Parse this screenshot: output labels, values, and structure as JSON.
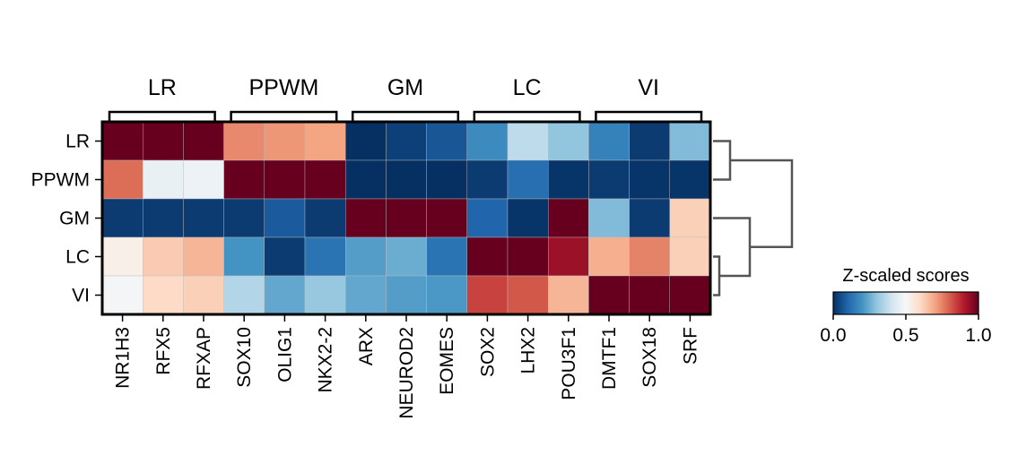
{
  "chart_data": {
    "type": "heatmap",
    "rows": [
      "LR",
      "PPWM",
      "GM",
      "LC",
      "VI"
    ],
    "columns": [
      "NR1H3",
      "RFX5",
      "RFXAP",
      "SOX10",
      "OLIG1",
      "NKX2-2",
      "ARX",
      "NEUROD2",
      "EOMES",
      "SOX2",
      "LHX2",
      "POU3F1",
      "DMTF1",
      "SOX18",
      "SRF"
    ],
    "column_groups": [
      {
        "label": "LR",
        "start": 0,
        "end": 2
      },
      {
        "label": "PPWM",
        "start": 3,
        "end": 5
      },
      {
        "label": "GM",
        "start": 6,
        "end": 8
      },
      {
        "label": "LC",
        "start": 9,
        "end": 11
      },
      {
        "label": "VI",
        "start": 12,
        "end": 14
      }
    ],
    "values": [
      [
        1.0,
        1.0,
        1.0,
        0.74,
        0.72,
        0.7,
        0.0,
        0.03,
        0.07,
        0.18,
        0.37,
        0.3,
        0.16,
        0.02,
        0.28
      ],
      [
        0.78,
        0.46,
        0.47,
        1.0,
        1.0,
        1.0,
        0.0,
        0.0,
        0.0,
        0.02,
        0.12,
        0.01,
        0.02,
        0.01,
        0.01
      ],
      [
        0.02,
        0.02,
        0.02,
        0.02,
        0.08,
        0.02,
        1.0,
        1.0,
        1.0,
        0.1,
        0.01,
        1.0,
        0.28,
        0.02,
        0.62
      ],
      [
        0.53,
        0.63,
        0.67,
        0.2,
        0.02,
        0.13,
        0.22,
        0.25,
        0.13,
        1.0,
        1.0,
        0.93,
        0.68,
        0.75,
        0.62
      ],
      [
        0.49,
        0.6,
        0.62,
        0.35,
        0.24,
        0.31,
        0.24,
        0.22,
        0.21,
        0.84,
        0.81,
        0.67,
        1.0,
        1.0,
        1.0
      ]
    ],
    "colorscale": "RdBu_r",
    "colorbar": {
      "title": "Z-scaled scores",
      "range": [
        0,
        1
      ],
      "ticks": [
        "0.0",
        "0.5",
        "1.0"
      ]
    },
    "dendrogram": "rows"
  }
}
